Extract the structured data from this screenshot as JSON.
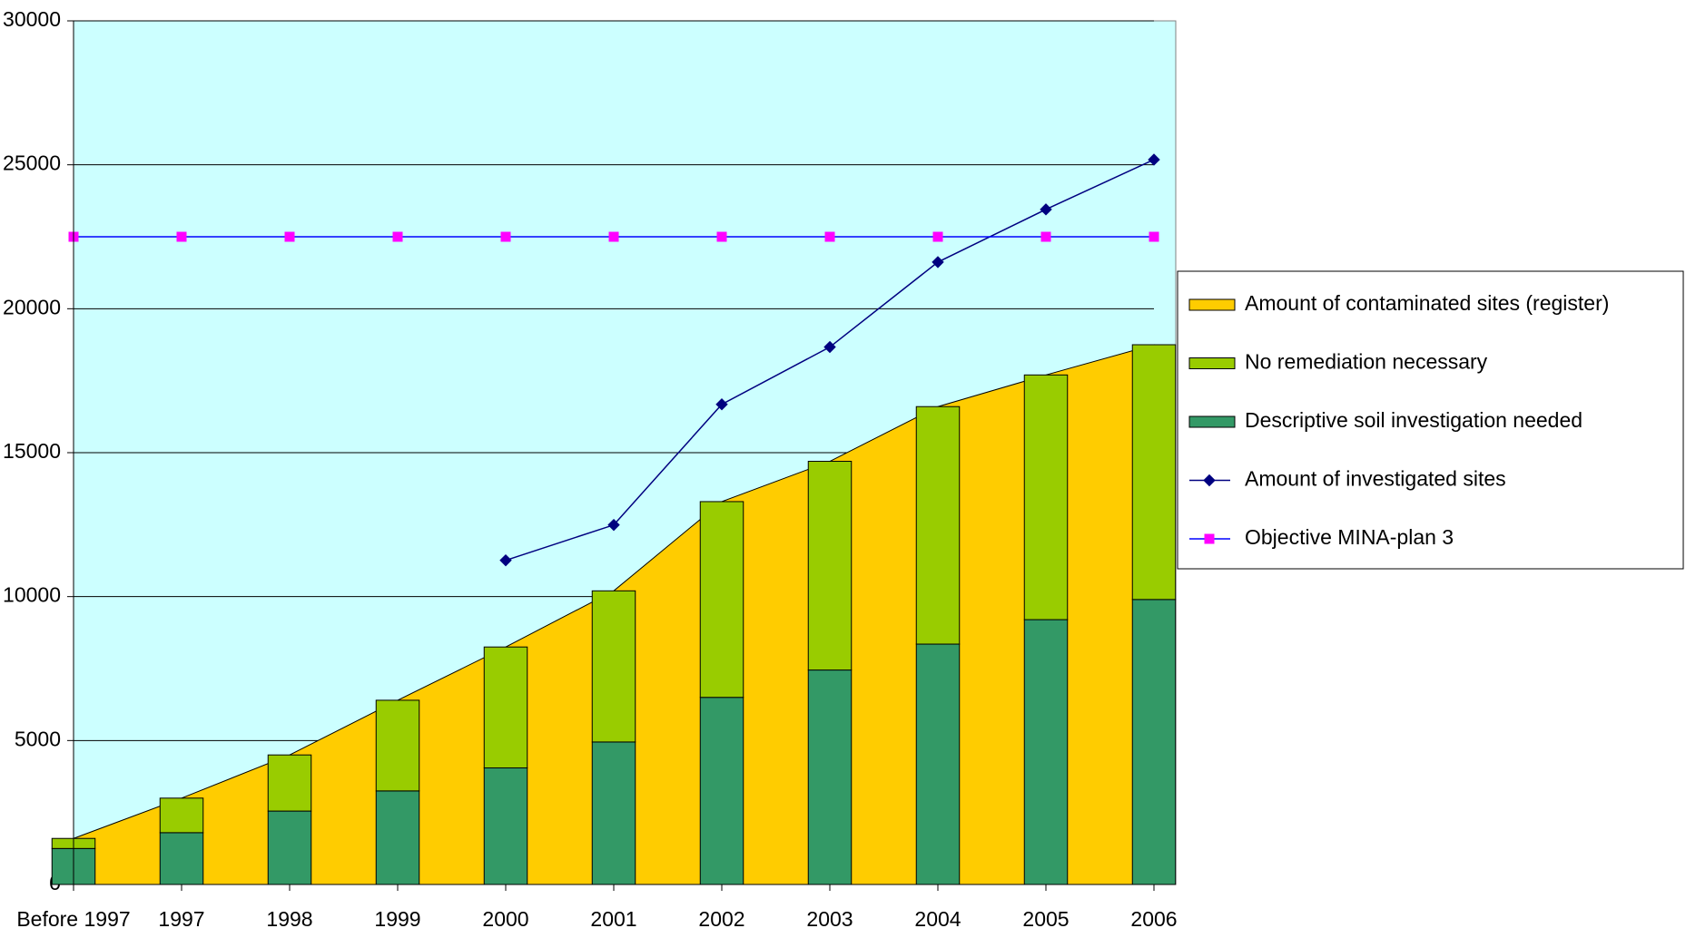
{
  "chart_data": {
    "type": "combo",
    "categories": [
      "Before 1997",
      "1997",
      "1998",
      "1999",
      "2000",
      "2001",
      "2002",
      "2003",
      "2004",
      "2005",
      "2006"
    ],
    "series": [
      {
        "name": "Amount of contaminated sites  (register)",
        "kind": "area",
        "color": "#ffcc00",
        "values": [
          1600,
          3000,
          4500,
          6400,
          8250,
          10200,
          13300,
          14700,
          16600,
          17700,
          18750
        ]
      },
      {
        "name": "No remediation necessary",
        "kind": "bar",
        "stack": 1,
        "color": "#99cc00",
        "values": [
          350,
          1200,
          1950,
          3150,
          4200,
          5250,
          6800,
          7250,
          8250,
          8500,
          8850
        ]
      },
      {
        "name": "Descriptive soil investigation needed",
        "kind": "bar",
        "stack": 0,
        "color": "#339966",
        "values": [
          1250,
          1800,
          2550,
          3250,
          4050,
          4950,
          6500,
          7450,
          8350,
          9200,
          9900
        ]
      },
      {
        "name": "Amount of investigated sites",
        "kind": "line",
        "color": "#000080",
        "marker": "diamond",
        "values": [
          null,
          null,
          null,
          null,
          11260,
          12490,
          16680,
          18670,
          21620,
          23450,
          25180
        ]
      },
      {
        "name": "Objective MINA-plan 3",
        "kind": "line",
        "color": "#0000ff",
        "marker_color": "#ff00ff",
        "marker": "square",
        "values": [
          22500,
          22500,
          22500,
          22500,
          22500,
          22500,
          22500,
          22500,
          22500,
          22500,
          22500
        ]
      }
    ],
    "ylim": [
      0,
      30000
    ],
    "yticks": [
      0,
      5000,
      10000,
      15000,
      20000,
      25000,
      30000
    ],
    "grid": true,
    "legend": "right",
    "background": "#ccffff"
  }
}
